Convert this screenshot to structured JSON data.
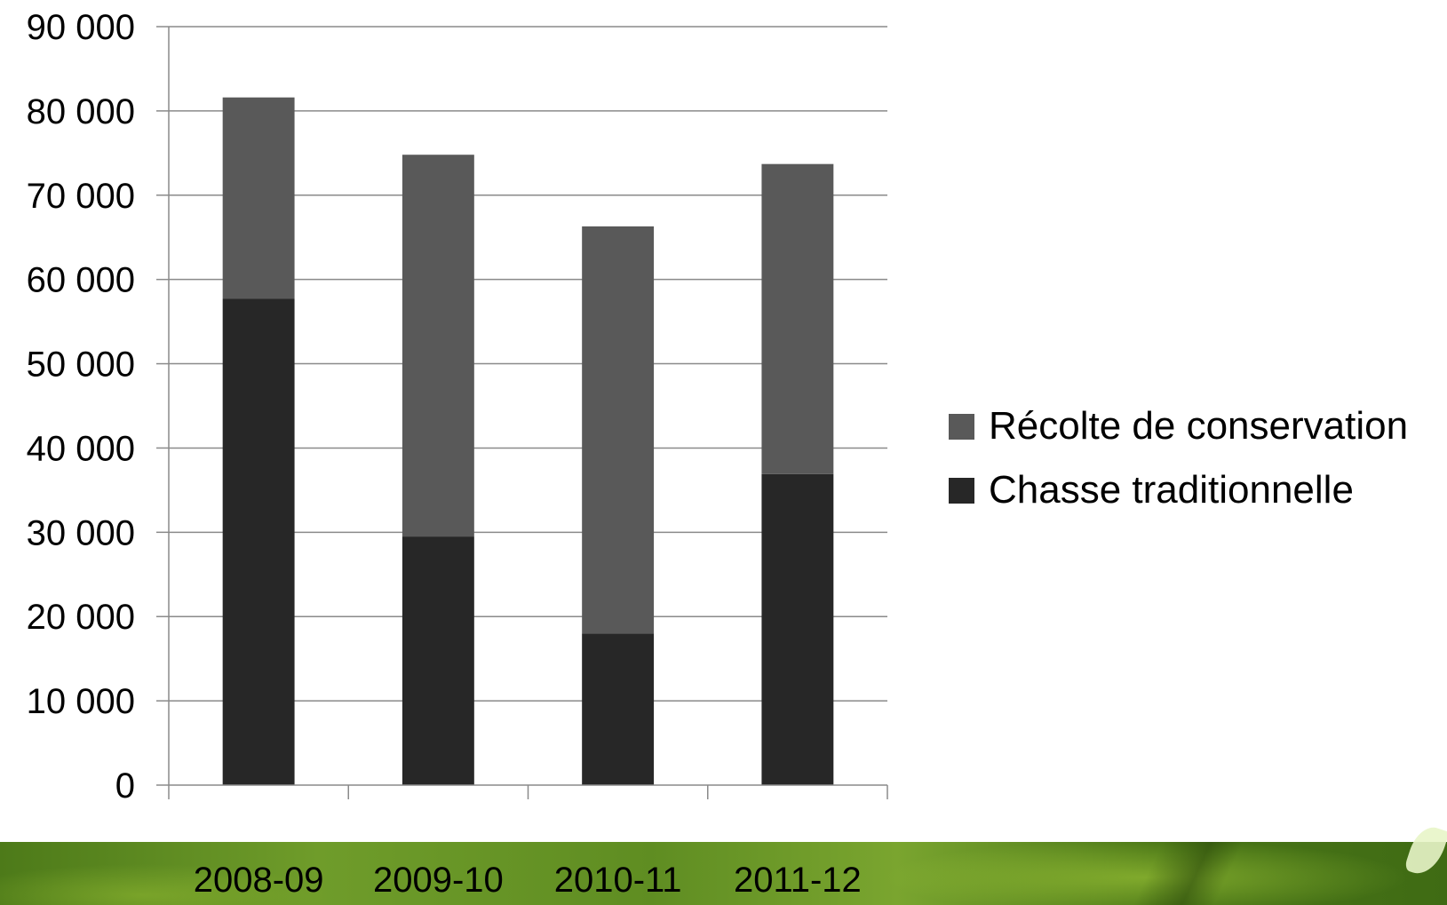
{
  "chart_data": {
    "type": "bar",
    "stacked": true,
    "title": "",
    "xlabel": "",
    "ylabel": "",
    "categories": [
      "2008-09",
      "2009-10",
      "2010-11",
      "2011-12"
    ],
    "series": [
      {
        "name": "Chasse traditionnelle",
        "color": "#272727",
        "values": [
          57700,
          29500,
          18000,
          36900
        ]
      },
      {
        "name": "Récolte de conservation",
        "color": "#595959",
        "values": [
          23900,
          45300,
          48300,
          36800
        ]
      }
    ],
    "ylim": [
      0,
      90000
    ],
    "yticks": [
      0,
      10000,
      20000,
      30000,
      40000,
      50000,
      60000,
      70000,
      80000,
      90000
    ],
    "ytick_labels": [
      "0",
      "10 000",
      "20 000",
      "30 000",
      "40 000",
      "50 000",
      "60 000",
      "70 000",
      "80 000",
      "90 000"
    ],
    "grid": "horizontal",
    "legend_position": "right",
    "legend_order": [
      "Récolte de conservation",
      "Chasse traditionnelle"
    ]
  }
}
